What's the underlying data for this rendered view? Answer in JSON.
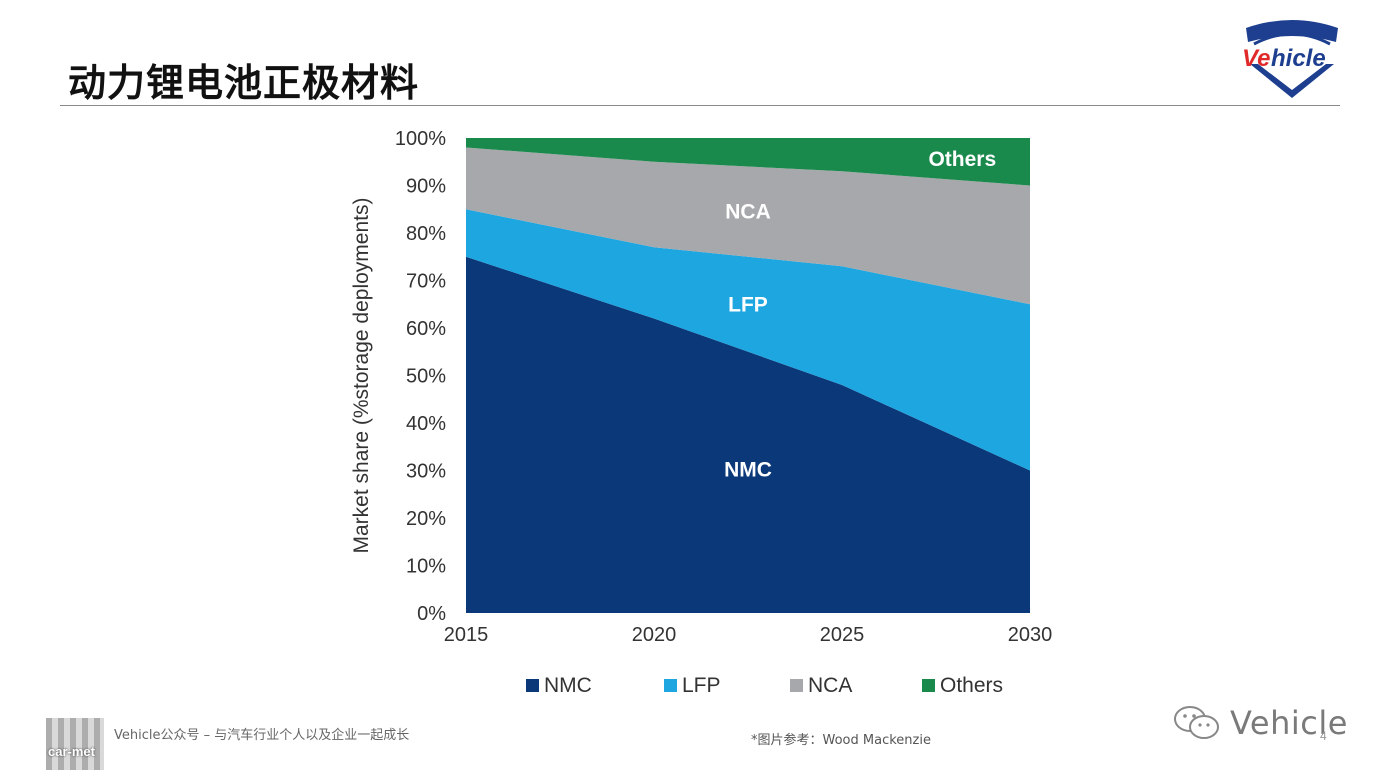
{
  "slide": {
    "title": "动力锂电池正极材料",
    "logo_text": "Vehicle",
    "footer_left": "Vehicle公众号 – 与汽车行业个人以及企业一起成长",
    "footer_source": "*图片参考：Wood Mackenzie",
    "qr_text": "car-met",
    "wechat_brand": "Vehicle",
    "page_number": "4"
  },
  "colors": {
    "NMC": "#0a3878",
    "LFP": "#1ea6e0",
    "NCA": "#a6a8ab",
    "Others": "#1a8a4c",
    "logo_red": "#e02a2a",
    "logo_blue": "#1e3f8f"
  },
  "chart_data": {
    "type": "area",
    "stacked": true,
    "x": [
      2015,
      2020,
      2025,
      2030
    ],
    "xticks": [
      "2015",
      "2020",
      "2025",
      "2030"
    ],
    "ylabel": "Market share (%storage deployments)",
    "yticks": [
      "0%",
      "10%",
      "20%",
      "30%",
      "40%",
      "50%",
      "60%",
      "70%",
      "80%",
      "90%",
      "100%"
    ],
    "ylim": [
      0,
      100
    ],
    "series": [
      {
        "name": "NMC",
        "label": "NMC",
        "values": [
          75,
          62,
          48,
          30
        ]
      },
      {
        "name": "LFP",
        "label": "LFP",
        "values": [
          10,
          15,
          25,
          35
        ]
      },
      {
        "name": "NCA",
        "label": "NCA",
        "values": [
          13,
          18,
          20,
          25
        ]
      },
      {
        "name": "Others",
        "label": "Others",
        "values": [
          2,
          5,
          7,
          10
        ]
      }
    ],
    "legend": [
      "NMC",
      "LFP",
      "NCA",
      "Others"
    ],
    "legend_position": "bottom"
  }
}
